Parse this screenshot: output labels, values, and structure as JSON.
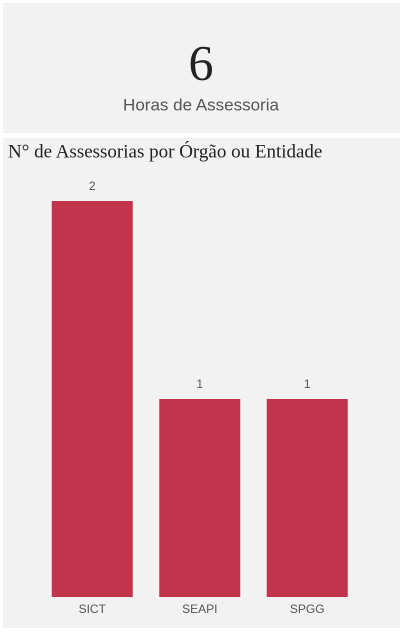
{
  "kpi": {
    "value": 6,
    "label": "Horas de Assessoria"
  },
  "chart_data": {
    "type": "bar",
    "title": "N° de Assessorias por Órgão ou Entidade",
    "categories": [
      "SICT",
      "SEAPI",
      "SPGG"
    ],
    "values": [
      2,
      1,
      1
    ],
    "color": "#c1344c"
  }
}
